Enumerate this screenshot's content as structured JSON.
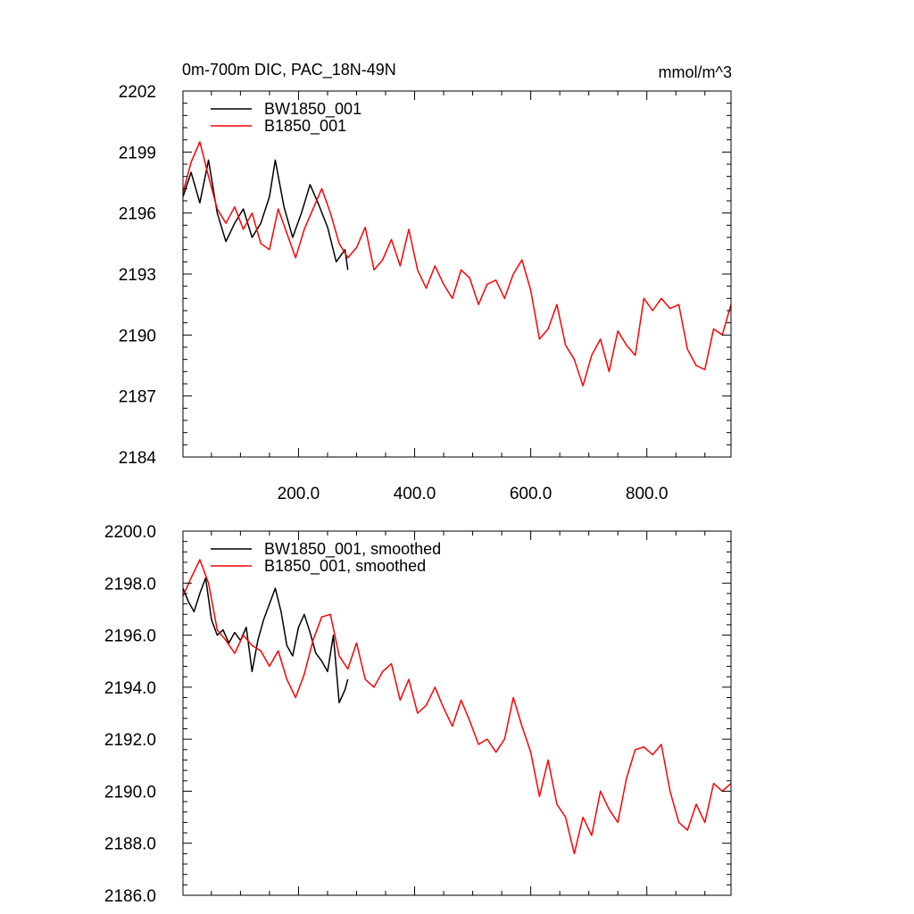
{
  "chart_data": [
    {
      "type": "line",
      "title": "0m-700m DIC, PAC_18N-49N",
      "units": "mmol/m^3",
      "xlim": [
        1,
        945
      ],
      "ylim": [
        2184,
        2202
      ],
      "x_ticks": [
        200,
        400,
        600,
        800
      ],
      "x_tick_labels": [
        "200.0",
        "400.0",
        "600.0",
        "800.0"
      ],
      "y_ticks": [
        2184,
        2187,
        2190,
        2193,
        2196,
        2199,
        2202
      ],
      "y_tick_labels": [
        "2184",
        "2187",
        "2190",
        "2193",
        "2196",
        "2199",
        "2202"
      ],
      "legend": "top-left",
      "series": [
        {
          "name": "BW1850_001",
          "color": "#000000",
          "x": [
            1,
            15,
            30,
            45,
            60,
            75,
            90,
            105,
            120,
            135,
            150,
            160,
            175,
            190,
            205,
            220,
            235,
            250,
            265,
            280,
            285
          ],
          "values": [
            2196.8,
            2198.0,
            2196.5,
            2198.6,
            2196.0,
            2194.6,
            2195.5,
            2196.2,
            2194.8,
            2195.5,
            2196.8,
            2198.6,
            2196.3,
            2194.8,
            2196.0,
            2197.4,
            2196.4,
            2195.3,
            2193.6,
            2194.2,
            2193.2
          ]
        },
        {
          "name": "B1850_001",
          "color": "#ff0000",
          "x": [
            1,
            15,
            30,
            45,
            60,
            75,
            90,
            105,
            120,
            135,
            150,
            165,
            180,
            195,
            210,
            225,
            240,
            255,
            270,
            285,
            300,
            315,
            330,
            345,
            360,
            375,
            390,
            405,
            420,
            435,
            450,
            465,
            480,
            495,
            510,
            525,
            540,
            555,
            570,
            585,
            600,
            615,
            630,
            645,
            660,
            675,
            690,
            705,
            720,
            735,
            750,
            765,
            780,
            795,
            810,
            825,
            840,
            855,
            870,
            885,
            900,
            915,
            930,
            945
          ],
          "values": [
            2197.0,
            2198.5,
            2199.5,
            2197.8,
            2196.2,
            2195.5,
            2196.3,
            2195.2,
            2196.0,
            2194.5,
            2194.2,
            2196.2,
            2195.0,
            2193.8,
            2195.2,
            2196.2,
            2197.2,
            2196.0,
            2194.5,
            2193.8,
            2194.3,
            2195.3,
            2193.2,
            2193.7,
            2194.7,
            2193.4,
            2195.2,
            2193.2,
            2192.3,
            2193.4,
            2192.5,
            2191.8,
            2193.2,
            2192.8,
            2191.5,
            2192.5,
            2192.7,
            2191.8,
            2193.0,
            2193.7,
            2192.2,
            2189.8,
            2190.3,
            2191.5,
            2189.5,
            2188.8,
            2187.5,
            2189.0,
            2189.8,
            2188.2,
            2190.2,
            2189.5,
            2189.0,
            2191.8,
            2191.2,
            2191.8,
            2191.3,
            2191.5,
            2189.3,
            2188.5,
            2188.3,
            2190.3,
            2190.0,
            2191.5
          ]
        }
      ]
    },
    {
      "type": "line",
      "xlim": [
        1,
        945
      ],
      "ylim": [
        2186.0,
        2200.0
      ],
      "x_ticks": [
        200,
        400,
        600,
        800
      ],
      "y_ticks": [
        2186,
        2188,
        2190,
        2192,
        2194,
        2196,
        2198,
        2200
      ],
      "y_tick_labels": [
        "2186.0",
        "2188.0",
        "2190.0",
        "2192.0",
        "2194.0",
        "2196.0",
        "2198.0",
        "2200.0"
      ],
      "legend": "top-left",
      "series": [
        {
          "name": "BW1850_001, smoothed",
          "color": "#000000",
          "x": [
            1,
            10,
            20,
            30,
            40,
            50,
            60,
            70,
            80,
            90,
            100,
            110,
            120,
            130,
            140,
            150,
            160,
            170,
            180,
            190,
            200,
            210,
            220,
            230,
            240,
            250,
            260,
            270,
            280,
            285
          ],
          "values": [
            2197.8,
            2197.3,
            2196.9,
            2197.6,
            2198.2,
            2196.6,
            2196.0,
            2196.2,
            2195.7,
            2196.1,
            2195.8,
            2196.3,
            2194.6,
            2195.8,
            2196.6,
            2197.2,
            2197.8,
            2196.9,
            2195.6,
            2195.2,
            2196.3,
            2196.8,
            2196.1,
            2195.3,
            2195.0,
            2194.6,
            2196.0,
            2193.4,
            2193.9,
            2194.3
          ]
        },
        {
          "name": "B1850_001, smoothed",
          "color": "#ff0000",
          "x": [
            1,
            15,
            30,
            45,
            60,
            75,
            90,
            105,
            120,
            135,
            150,
            165,
            180,
            195,
            210,
            225,
            240,
            255,
            270,
            285,
            300,
            315,
            330,
            345,
            360,
            375,
            390,
            405,
            420,
            435,
            450,
            465,
            480,
            495,
            510,
            525,
            540,
            555,
            570,
            585,
            600,
            615,
            630,
            645,
            660,
            675,
            690,
            705,
            720,
            735,
            750,
            765,
            780,
            795,
            810,
            825,
            840,
            855,
            870,
            885,
            900,
            915,
            930,
            945
          ],
          "values": [
            2197.5,
            2198.2,
            2198.9,
            2198.0,
            2196.2,
            2195.8,
            2195.3,
            2196.0,
            2195.6,
            2195.4,
            2194.8,
            2195.4,
            2194.3,
            2193.6,
            2194.5,
            2195.8,
            2196.7,
            2196.8,
            2195.2,
            2194.7,
            2195.7,
            2194.3,
            2194.0,
            2194.6,
            2194.9,
            2193.5,
            2194.3,
            2193.0,
            2193.3,
            2194.0,
            2193.2,
            2192.5,
            2193.5,
            2192.7,
            2191.8,
            2192.0,
            2191.5,
            2192.0,
            2193.6,
            2192.5,
            2191.5,
            2189.8,
            2191.2,
            2189.5,
            2189.0,
            2187.6,
            2189.0,
            2188.3,
            2190.0,
            2189.3,
            2188.8,
            2190.5,
            2191.6,
            2191.7,
            2191.4,
            2191.8,
            2190.0,
            2188.8,
            2188.5,
            2189.5,
            2188.8,
            2190.3,
            2190.0,
            2190.3
          ]
        }
      ]
    }
  ]
}
